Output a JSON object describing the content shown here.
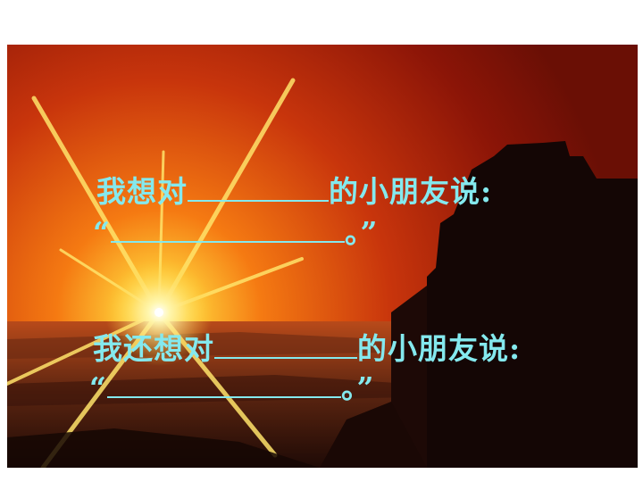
{
  "slide": {
    "line1": {
      "before": "我想对",
      "after": "的小朋友说:"
    },
    "line2": {
      "open_quote": "“",
      "period": "。",
      "close_quote": "”"
    },
    "line3": {
      "before": "我还想对",
      "after": "的小朋友说:"
    },
    "line4": {
      "open_quote": "“",
      "period": "。",
      "close_quote": "”"
    }
  },
  "colors": {
    "text": "#84e9ee",
    "sky_top": "#8c1507",
    "sky_glow": "#ffd23a",
    "silhouette": "#140605"
  }
}
